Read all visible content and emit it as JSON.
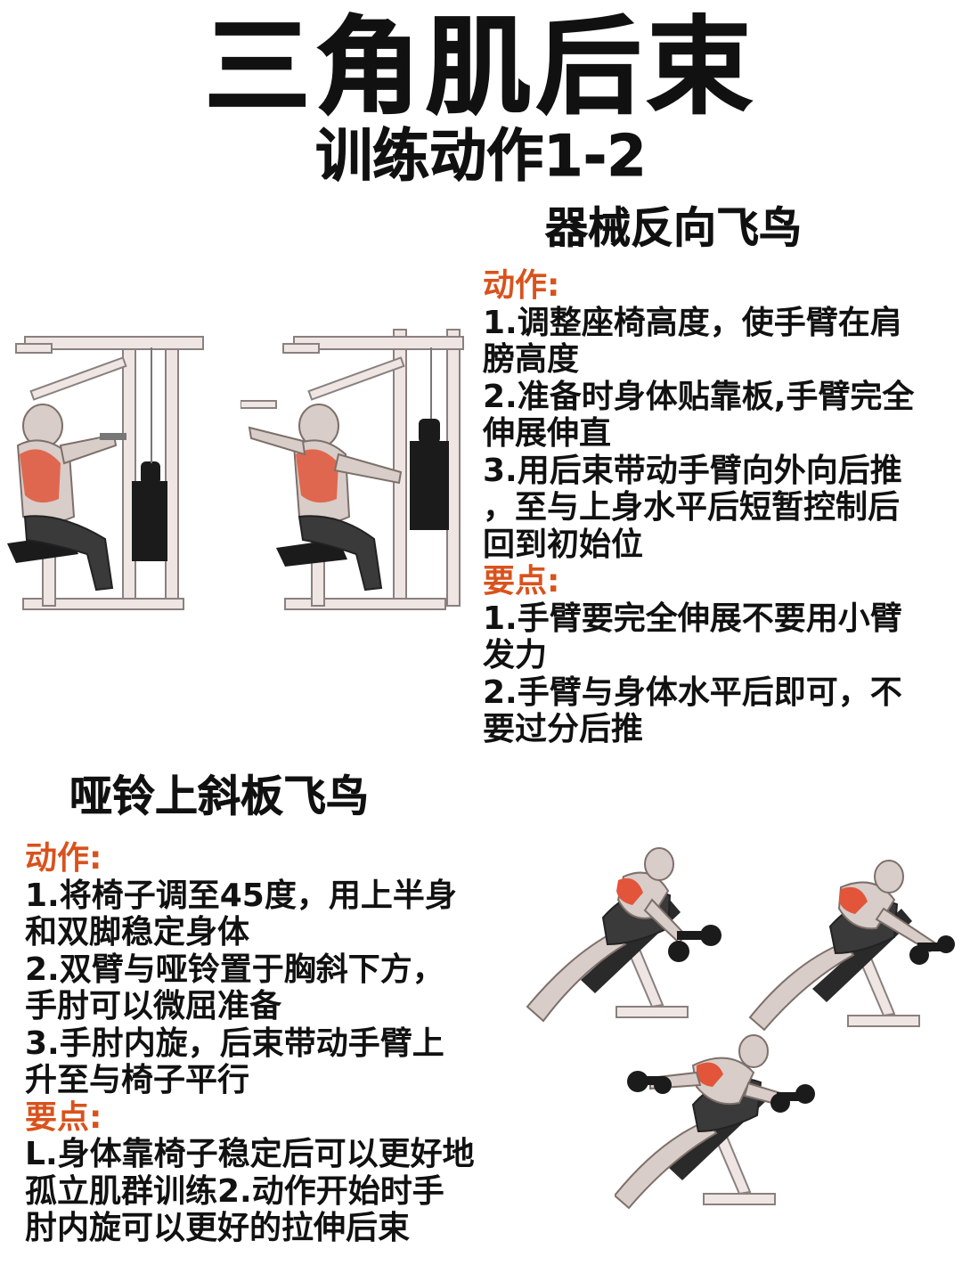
{
  "header": {
    "title": "三角肌后束",
    "subtitle": "训练动作1-2"
  },
  "section1": {
    "title": "器械反向飞鸟",
    "action_label": "动作:",
    "action_lines": [
      "1.调整座椅高度，使手臂在肩",
      "膀高度",
      "2.准备时身体贴靠板,手臂完全",
      "伸展伸直",
      "3.用后束带动手臂向外向后推",
      "，至与上身水平后短暂控制后",
      "回到初始位"
    ],
    "points_label": "要点:",
    "points_lines": [
      "1.手臂要完全伸展不要用小臂",
      "发力",
      "2.手臂与身体水平后即可，不",
      "要过分后推"
    ]
  },
  "section2": {
    "title": "哑铃上斜板飞鸟",
    "action_label": "动作:",
    "action_lines": [
      "1.将椅子调至45度，用上半身",
      "和双脚稳定身体",
      "2.双臂与哑铃置于胸斜下方，",
      "手肘可以微屈准备",
      "3.手肘内旋，后束带动手臂上",
      "升至与椅子平行"
    ],
    "points_label": "要点:",
    "points_lines": [
      "L.身体靠椅子稳定后可以更好地",
      "孤立肌群训练2.动作开始时手",
      "肘内旋可以更好的拉伸后束"
    ]
  },
  "colors": {
    "accent_label": "#d9521c",
    "muscle_highlight": "#e2553a",
    "machine_frame": "#efe6e4",
    "text": "#111111"
  },
  "illustrations": [
    "machine-reverse-fly-start",
    "machine-reverse-fly-end",
    "incline-dumbbell-fly-pose-1",
    "incline-dumbbell-fly-pose-2",
    "incline-dumbbell-fly-pose-3"
  ]
}
